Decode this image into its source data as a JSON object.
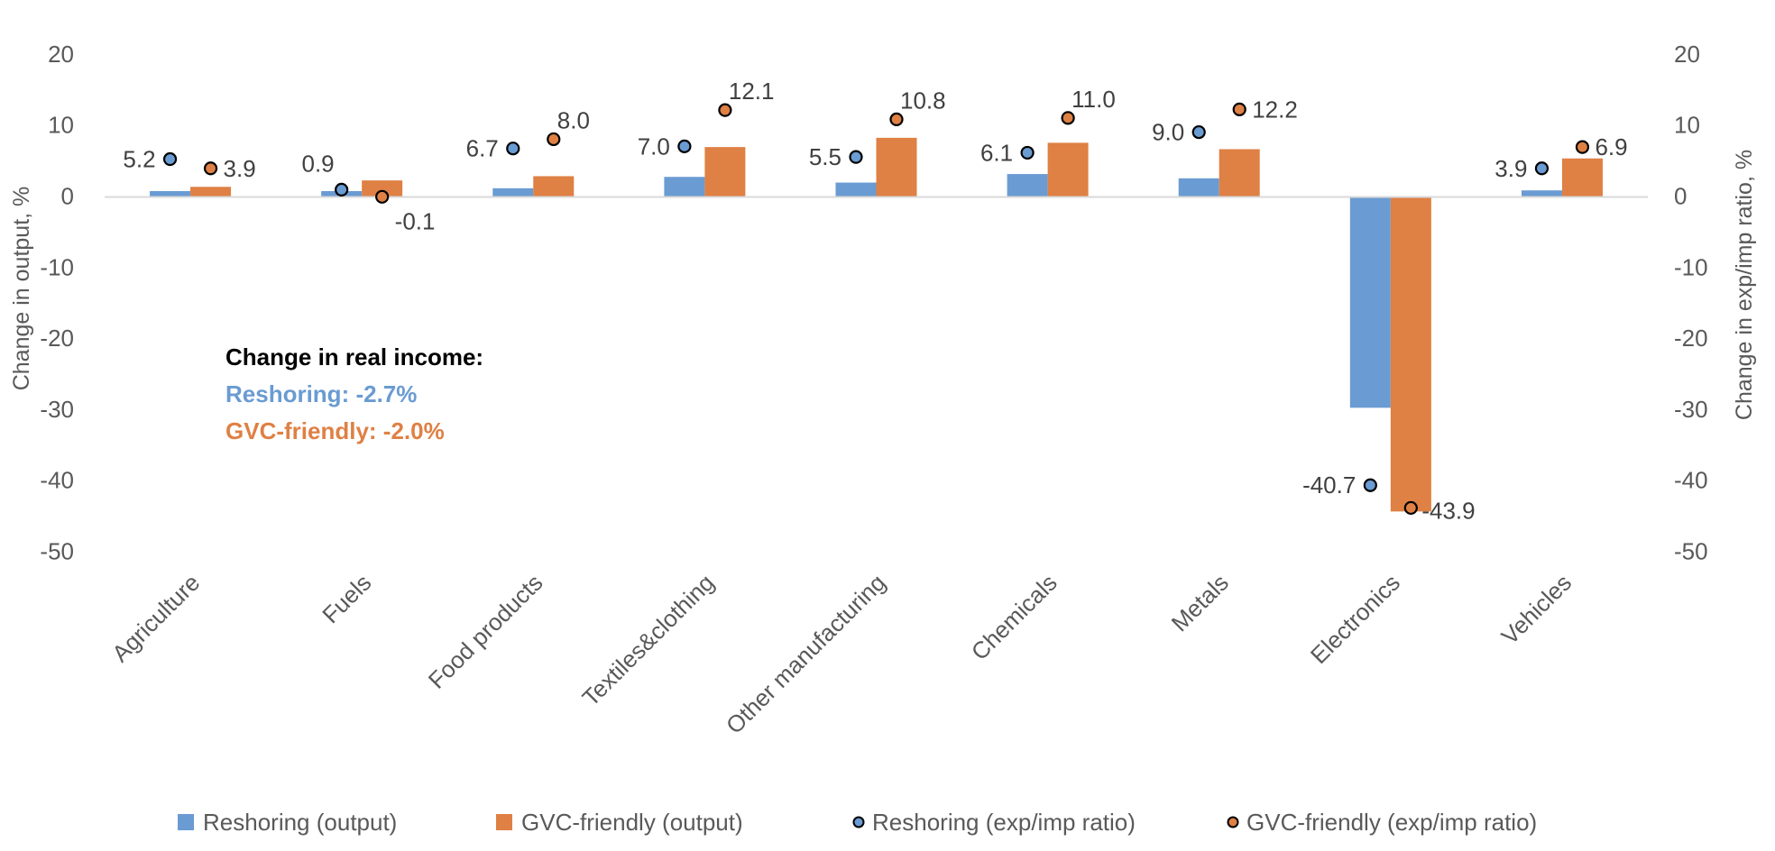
{
  "chart_data": {
    "type": "bar",
    "title": "",
    "xlabel": "",
    "ylabel": "Change in output, %",
    "y2label": "Change in exp/imp ratio, %",
    "ylim": [
      -50,
      20
    ],
    "y2lim": [
      -50,
      20
    ],
    "yticks": [
      20,
      10,
      0,
      -10,
      -20,
      -30,
      -40,
      -50
    ],
    "y2ticks": [
      20,
      10,
      0,
      -10,
      -20,
      -30,
      -40,
      -50
    ],
    "grid": false,
    "legend_position": "bottom",
    "categories": [
      "Agriculture",
      "Fuels",
      "Food products",
      "Textiles&clothing",
      "Other manufacturing",
      "Chemicals",
      "Metals",
      "Electronics",
      "Vehicles"
    ],
    "series": [
      {
        "name": "Reshoring (output)",
        "kind": "bar",
        "axis": "left",
        "color": "#6a9bd2",
        "values": [
          0.7,
          0.7,
          1.1,
          2.7,
          1.9,
          3.1,
          2.5,
          -29.8,
          0.8
        ]
      },
      {
        "name": "GVC-friendly (output)",
        "kind": "bar",
        "axis": "left",
        "color": "#df8044",
        "values": [
          1.3,
          2.2,
          2.8,
          6.9,
          8.2,
          7.5,
          6.6,
          -44.4,
          5.3
        ]
      },
      {
        "name": "Reshoring (exp/imp ratio)",
        "kind": "scatter",
        "axis": "right",
        "color": "#6a9bd2",
        "values": [
          5.2,
          0.9,
          6.7,
          7.0,
          5.5,
          6.1,
          9.0,
          -40.7,
          3.9
        ],
        "labels": [
          "5.2",
          "0.9",
          "6.7",
          "7.0",
          "5.5",
          "6.1",
          "9.0",
          "-40.7",
          "3.9"
        ]
      },
      {
        "name": "GVC-friendly (exp/imp ratio)",
        "kind": "scatter",
        "axis": "right",
        "color": "#df8044",
        "values": [
          3.9,
          -0.1,
          8.0,
          12.1,
          10.8,
          11.0,
          12.2,
          -43.9,
          6.9
        ],
        "labels": [
          "3.9",
          "-0.1",
          "8.0",
          "12.1",
          "10.8",
          "11.0",
          "12.2",
          "-43.9",
          "6.9"
        ]
      }
    ],
    "annotation": {
      "heading": "Change in real income:",
      "lines": [
        {
          "text": "Reshoring: -2.7%",
          "color": "#6a9bd2"
        },
        {
          "text": "GVC-friendly: -2.0%",
          "color": "#df8044"
        }
      ]
    }
  }
}
